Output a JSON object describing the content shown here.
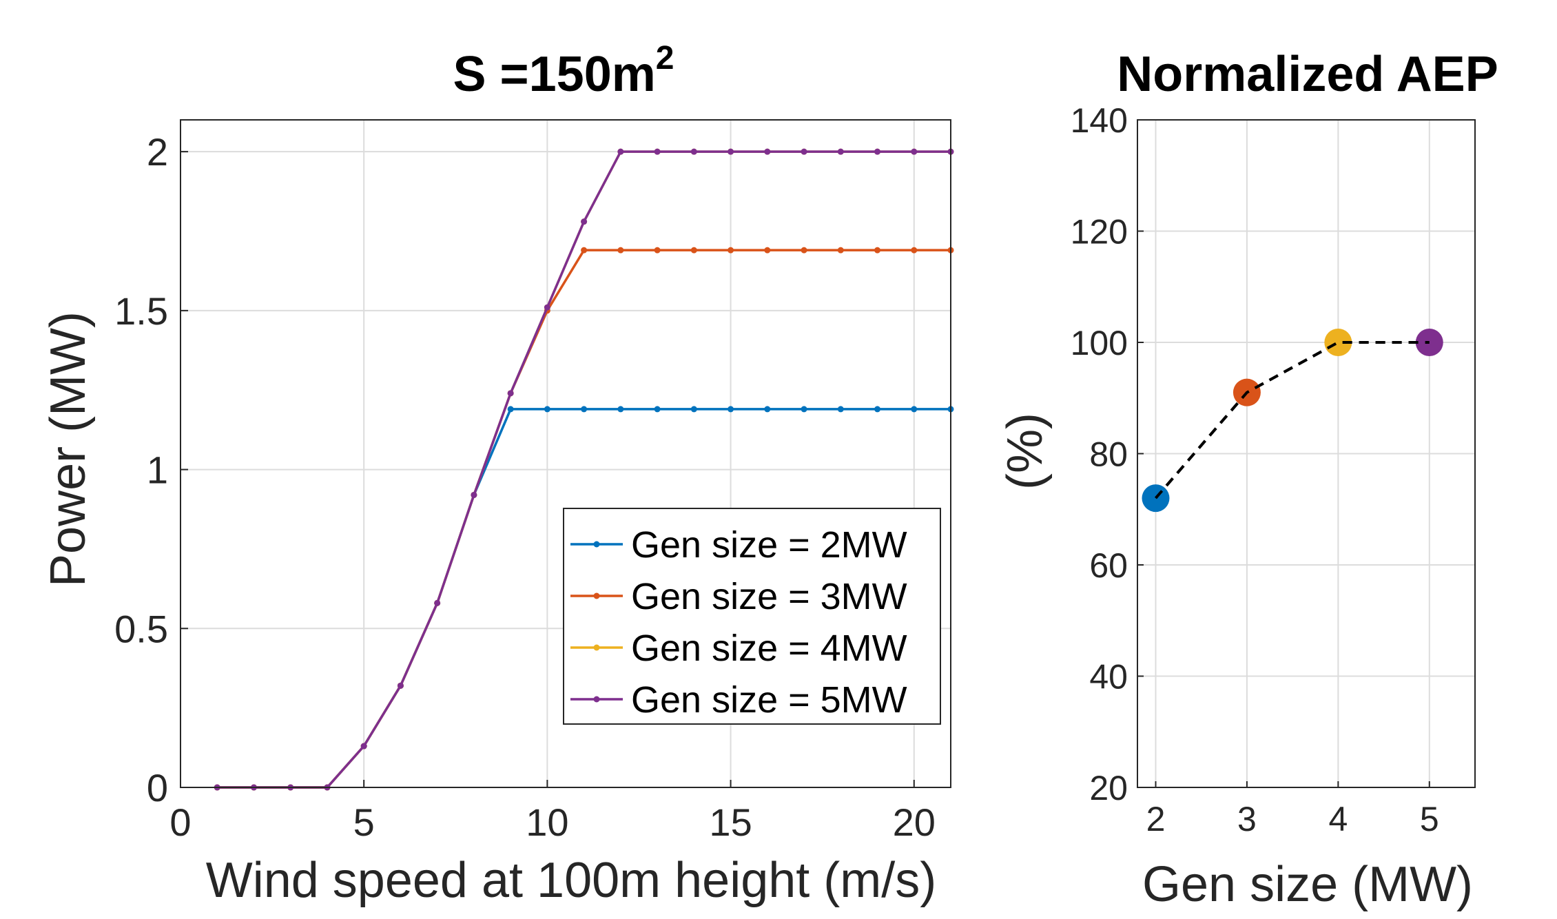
{
  "chart_data": [
    {
      "type": "line",
      "title": "S =150m",
      "title_superscript": "2",
      "xlabel": "Wind speed at 100m height (m/s)",
      "ylabel": "Power (MW)",
      "xlim": [
        0,
        21
      ],
      "ylim": [
        0,
        2.1
      ],
      "xticks": [
        "0",
        "5",
        "10",
        "15",
        "20"
      ],
      "yticks": [
        "0",
        "0.5",
        "1",
        "1.5",
        "2"
      ],
      "grid": true,
      "legend_position": "bottom-right",
      "x": [
        1,
        2,
        3,
        4,
        5,
        6,
        7,
        8,
        9,
        10,
        11,
        12,
        13,
        14,
        15,
        16,
        17,
        18,
        19,
        20,
        21
      ],
      "series": [
        {
          "name": "Gen size = 2MW",
          "color": "#0072BD",
          "values": [
            0,
            0,
            0,
            0,
            0.13,
            0.32,
            0.58,
            0.92,
            1.19,
            1.19,
            1.19,
            1.19,
            1.19,
            1.19,
            1.19,
            1.19,
            1.19,
            1.19,
            1.19,
            1.19,
            1.19
          ]
        },
        {
          "name": "Gen size = 3MW",
          "color": "#D95319",
          "values": [
            0,
            0,
            0,
            0,
            0.13,
            0.32,
            0.58,
            0.92,
            1.24,
            1.5,
            1.69,
            1.69,
            1.69,
            1.69,
            1.69,
            1.69,
            1.69,
            1.69,
            1.69,
            1.69,
            1.69
          ]
        },
        {
          "name": "Gen size = 4MW",
          "color": "#EDB120",
          "values": [
            0,
            0,
            0,
            0,
            0.13,
            0.32,
            0.58,
            0.92,
            1.24,
            1.51,
            1.78,
            2.0,
            2.0,
            2.0,
            2.0,
            2.0,
            2.0,
            2.0,
            2.0,
            2.0,
            2.0
          ]
        },
        {
          "name": "Gen size = 5MW",
          "color": "#7E2F8E",
          "values": [
            0,
            0,
            0,
            0,
            0.13,
            0.32,
            0.58,
            0.92,
            1.24,
            1.51,
            1.78,
            2.0,
            2.0,
            2.0,
            2.0,
            2.0,
            2.0,
            2.0,
            2.0,
            2.0,
            2.0
          ]
        }
      ]
    },
    {
      "type": "scatter",
      "title": "Normalized AEP",
      "xlabel": "Gen size (MW)",
      "ylabel": "(%)",
      "xlim": [
        1.8,
        5.5
      ],
      "ylim": [
        20,
        140
      ],
      "xticks": [
        "2",
        "3",
        "4",
        "5"
      ],
      "yticks": [
        "20",
        "40",
        "60",
        "80",
        "100",
        "120",
        "140"
      ],
      "grid": true,
      "line_style": "dashed",
      "line_color": "#000000",
      "points": [
        {
          "x": 2,
          "y": 72,
          "color": "#0072BD"
        },
        {
          "x": 3,
          "y": 91,
          "color": "#D95319"
        },
        {
          "x": 4,
          "y": 100,
          "color": "#EDB120"
        },
        {
          "x": 5,
          "y": 100,
          "color": "#7E2F8E"
        }
      ]
    }
  ]
}
